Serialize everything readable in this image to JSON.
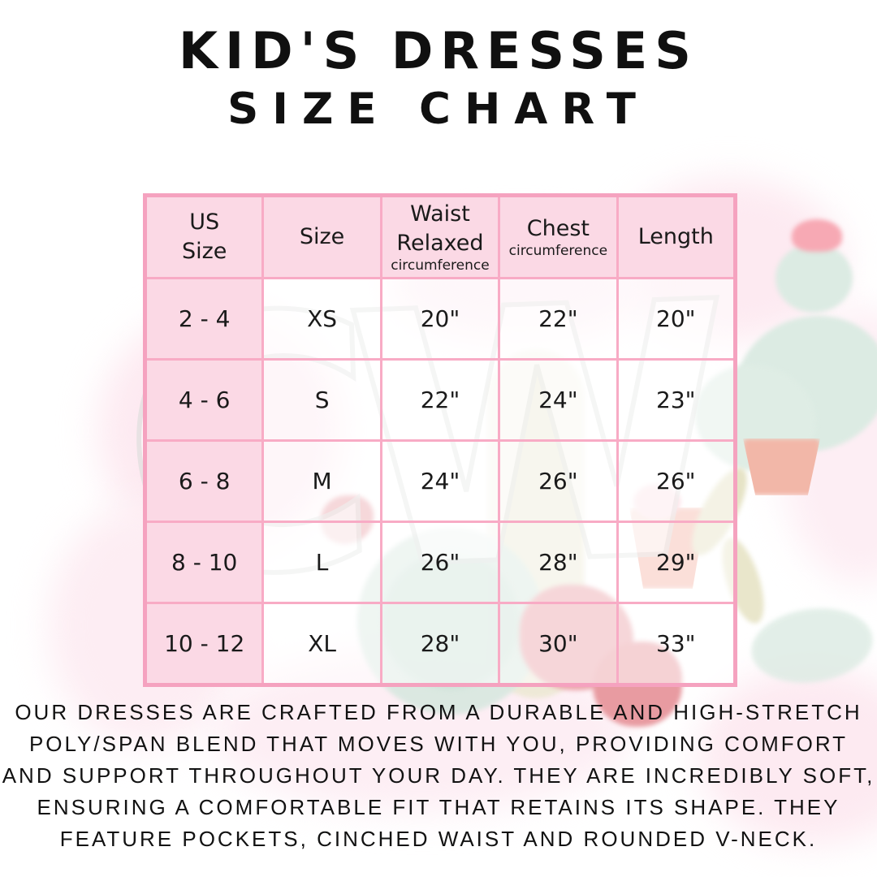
{
  "title": {
    "line1": "KID'S DRESSES",
    "line2": "SIZE CHART"
  },
  "watermark": {
    "text": "CW"
  },
  "chart_data": {
    "type": "table",
    "title": "KID'S DRESSES SIZE CHART",
    "columns": [
      "US Size",
      "Size",
      "Waist Relaxed circumference",
      "Chest circumference",
      "Length"
    ],
    "rows": [
      [
        "2 - 4",
        "XS",
        "20\"",
        "22\"",
        "20\""
      ],
      [
        "4 - 6",
        "S",
        "22\"",
        "24\"",
        "23\""
      ],
      [
        "6 - 8",
        "M",
        "24\"",
        "26\"",
        "26\""
      ],
      [
        "8 - 10",
        "L",
        "26\"",
        "28\"",
        "29\""
      ],
      [
        "10 - 12",
        "XL",
        "28\"",
        "30\"",
        "33\""
      ]
    ]
  },
  "table": {
    "headers": [
      {
        "lines": [
          "US",
          "Size"
        ]
      },
      {
        "lines": [
          "Size"
        ]
      },
      {
        "lines": [
          "Waist",
          "Relaxed"
        ],
        "sub": "circumference"
      },
      {
        "lines": [
          "Chest"
        ],
        "sub": "circumference"
      },
      {
        "lines": [
          "Length"
        ]
      }
    ]
  },
  "description": {
    "lines": [
      "OUR DRESSES ARE CRAFTED FROM A DURABLE AND HIGH-STRETCH",
      "POLY/SPAN BLEND THAT MOVES WITH YOU, PROVIDING COMFORT",
      "AND SUPPORT THROUGHOUT YOUR DAY. THEY ARE INCREDIBLY SOFT,",
      "ENSURING A COMFORTABLE FIT THAT RETAINS ITS SHAPE. THEY",
      "FEATURE POCKETS, CINCHED WAIST AND ROUNDED V-NECK."
    ]
  },
  "colors": {
    "table_border": "#f5a2bf",
    "table_gridline": "#f8abc5",
    "header_fill": "#fbd9e5",
    "text": "#161616"
  }
}
